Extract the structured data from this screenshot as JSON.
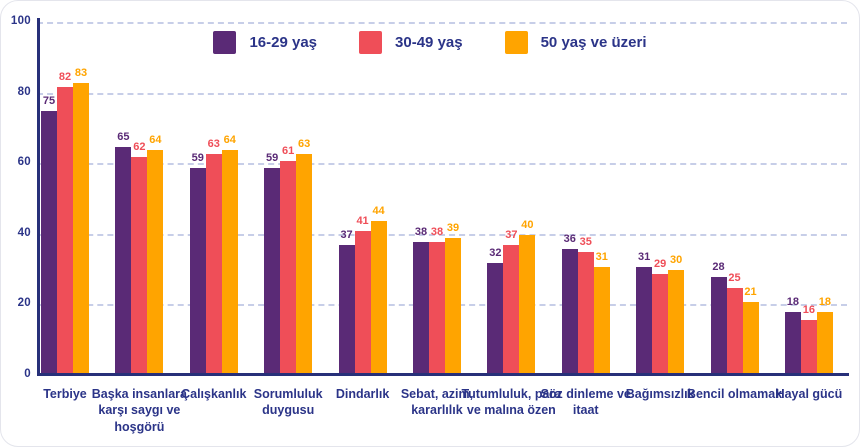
{
  "chart_data": {
    "type": "bar",
    "title": "",
    "xlabel": "",
    "ylabel": "",
    "ylim": [
      0,
      100
    ],
    "yticks": [
      0,
      20,
      40,
      60,
      80,
      100
    ],
    "grid": "horizontal-dashed",
    "legend_position": "top-center",
    "categories": [
      "Terbiye",
      "Başka insanlara karşı saygı ve hoşgörü",
      "Çalışkanlık",
      "Sorumluluk duygusu",
      "Dindarlık",
      "Sebat, azim, kararlılık",
      "Tutumluluk, para ve malına özen",
      "Söz dinleme ve itaat",
      "Bağımsızlık",
      "Bencil olmamak",
      "Hayal gücü"
    ],
    "series": [
      {
        "name": "16-29 yaş",
        "color": "#5a2a76",
        "values": [
          75,
          65,
          59,
          59,
          37,
          38,
          32,
          36,
          31,
          28,
          18
        ]
      },
      {
        "name": "30-49 yaş",
        "color": "#ef4e58",
        "values": [
          82,
          62,
          63,
          61,
          41,
          38,
          37,
          35,
          29,
          25,
          16
        ]
      },
      {
        "name": "50 yaş ve üzeri",
        "color": "#ffa400",
        "values": [
          83,
          64,
          64,
          63,
          44,
          39,
          40,
          31,
          30,
          21,
          18
        ]
      }
    ]
  },
  "colors": {
    "axis": "#273079",
    "grid": "#c7cee8",
    "text": "#2b3488",
    "card_border": "#e4e5ec",
    "background": "#ffffff"
  }
}
